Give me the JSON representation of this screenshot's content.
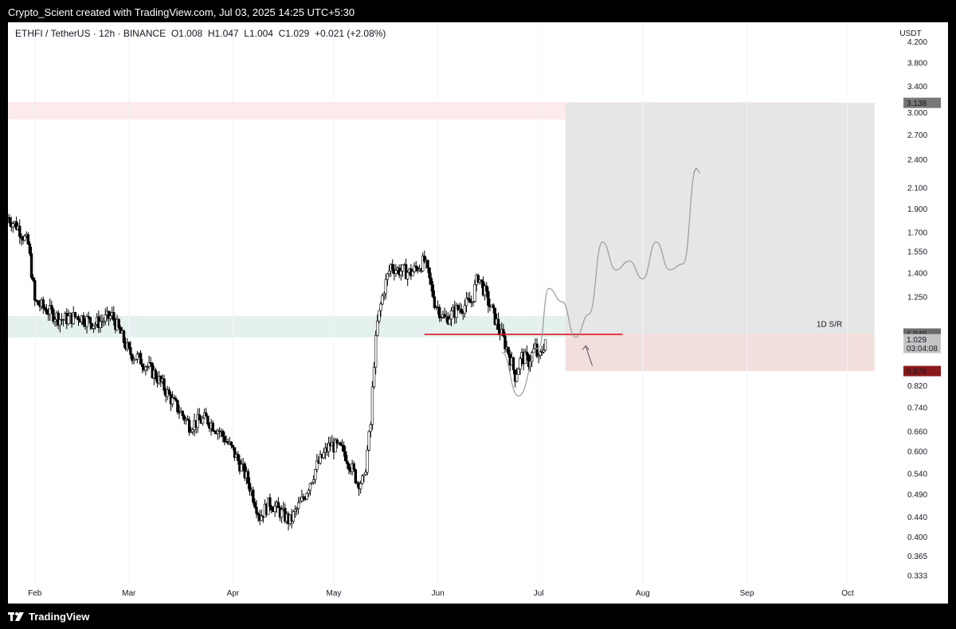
{
  "header": {
    "credit": "Crypto_Scient created with TradingView.com, Jul 03, 2025 14:25 UTC+5:30"
  },
  "legend": {
    "symbol": "ETHFI / TetherUS · 12h · BINANCE",
    "open": "O1.008",
    "high": "H1.047",
    "low": "L1.004",
    "close": "C1.029",
    "change": "+0.021 (+2.08%)"
  },
  "footer": {
    "brand": "TradingView"
  },
  "colors": {
    "up": "#ffffff",
    "down": "#000000",
    "target_zone": "#e6e6e6",
    "stop_zone": "#f3dede",
    "resistance_band": "#fdeaea",
    "support_band": "#e5f1ef",
    "trend_line": "#e0141e"
  },
  "chart_data": {
    "type": "candlestick",
    "currency": "USDT",
    "y_scale": "log",
    "ylim": [
      0.32,
      4.6
    ],
    "y_ticks": [
      "4.200",
      "3.800",
      "3.400",
      "3.000",
      "2.700",
      "2.400",
      "2.100",
      "1.900",
      "1.700",
      "1.550",
      "1.400",
      "1.250",
      "1.049",
      "1.029",
      "0.878",
      "0.820",
      "0.740",
      "0.660",
      "0.600",
      "0.540",
      "0.490",
      "0.440",
      "0.400",
      "0.365",
      "0.333"
    ],
    "x_ticks": [
      "Feb",
      "Mar",
      "Apr",
      "May",
      "Jun",
      "Jul",
      "Aug",
      "Sep",
      "Oct"
    ],
    "x_range": [
      "2025-01-24",
      "2025-10-15"
    ],
    "price_tags": [
      {
        "label": "3.138",
        "value": 3.138,
        "style": "target"
      },
      {
        "label": "1.049",
        "value": 1.049,
        "style": "level"
      },
      {
        "label": "1.029",
        "value": 1.029,
        "style": "last"
      },
      {
        "label": "03:04:08",
        "value": 1.029,
        "style": "countdown"
      },
      {
        "label": "0.878",
        "value": 0.878,
        "style": "stop"
      }
    ],
    "long_position": {
      "start": "2025-07-09",
      "end": "2025-10-09",
      "entry": 1.049,
      "target": 3.138,
      "stop": 0.878
    },
    "resistance_zone": {
      "from": 2.9,
      "to": 3.15
    },
    "support_zone": {
      "from": 1.03,
      "to": 1.14,
      "label": "1D S/R"
    },
    "horizontal_line": {
      "start": "2025-05-28",
      "end": "2025-07-26",
      "value": 1.045
    },
    "candle_path": [
      [
        "2025-01-24",
        1.82
      ],
      [
        "2025-01-27",
        1.74
      ],
      [
        "2025-01-30",
        1.6
      ],
      [
        "2025-02-01",
        1.22
      ],
      [
        "2025-02-04",
        1.18
      ],
      [
        "2025-02-09",
        1.12
      ],
      [
        "2025-02-14",
        1.14
      ],
      [
        "2025-02-19",
        1.1
      ],
      [
        "2025-02-24",
        1.14
      ],
      [
        "2025-02-27",
        1.03
      ],
      [
        "2025-03-01",
        0.96
      ],
      [
        "2025-03-05",
        0.92
      ],
      [
        "2025-03-09",
        0.86
      ],
      [
        "2025-03-14",
        0.76
      ],
      [
        "2025-03-19",
        0.68
      ],
      [
        "2025-03-24",
        0.7
      ],
      [
        "2025-03-28",
        0.66
      ],
      [
        "2025-04-01",
        0.6
      ],
      [
        "2025-04-05",
        0.53
      ],
      [
        "2025-04-09",
        0.44
      ],
      [
        "2025-04-12",
        0.47
      ],
      [
        "2025-04-15",
        0.45
      ],
      [
        "2025-04-18",
        0.43
      ],
      [
        "2025-04-22",
        0.48
      ],
      [
        "2025-04-26",
        0.56
      ],
      [
        "2025-04-30",
        0.62
      ],
      [
        "2025-05-04",
        0.6
      ],
      [
        "2025-05-08",
        0.52
      ],
      [
        "2025-05-10",
        0.52
      ],
      [
        "2025-05-12",
        0.68
      ],
      [
        "2025-05-13",
        0.92
      ],
      [
        "2025-05-14",
        1.1
      ],
      [
        "2025-05-16",
        1.3
      ],
      [
        "2025-05-18",
        1.45
      ],
      [
        "2025-05-20",
        1.42
      ],
      [
        "2025-05-24",
        1.4
      ],
      [
        "2025-05-28",
        1.48
      ],
      [
        "2025-05-31",
        1.22
      ],
      [
        "2025-06-03",
        1.12
      ],
      [
        "2025-06-07",
        1.18
      ],
      [
        "2025-06-11",
        1.22
      ],
      [
        "2025-06-13",
        1.38
      ],
      [
        "2025-06-16",
        1.22
      ],
      [
        "2025-06-19",
        1.08
      ],
      [
        "2025-06-22",
        0.96
      ],
      [
        "2025-06-24",
        0.86
      ],
      [
        "2025-06-26",
        0.94
      ],
      [
        "2025-06-28",
        0.92
      ],
      [
        "2025-06-30",
        0.98
      ],
      [
        "2025-07-01",
        0.92
      ],
      [
        "2025-07-03",
        1.02
      ]
    ],
    "projection_path": [
      [
        "2025-06-20",
        0.96
      ],
      [
        "2025-06-25",
        0.78
      ],
      [
        "2025-07-01",
        0.98
      ],
      [
        "2025-07-04",
        1.3
      ],
      [
        "2025-07-08",
        1.22
      ],
      [
        "2025-07-12",
        1.03
      ],
      [
        "2025-07-16",
        1.15
      ],
      [
        "2025-07-20",
        1.62
      ],
      [
        "2025-07-24",
        1.42
      ],
      [
        "2025-07-28",
        1.48
      ],
      [
        "2025-08-01",
        1.36
      ],
      [
        "2025-08-05",
        1.62
      ],
      [
        "2025-08-09",
        1.42
      ],
      [
        "2025-08-13",
        1.46
      ],
      [
        "2025-08-17",
        2.3
      ]
    ],
    "retest_arrow": {
      "from": [
        "2025-07-17",
        0.9
      ],
      "to": [
        "2025-07-15",
        0.99
      ]
    }
  }
}
